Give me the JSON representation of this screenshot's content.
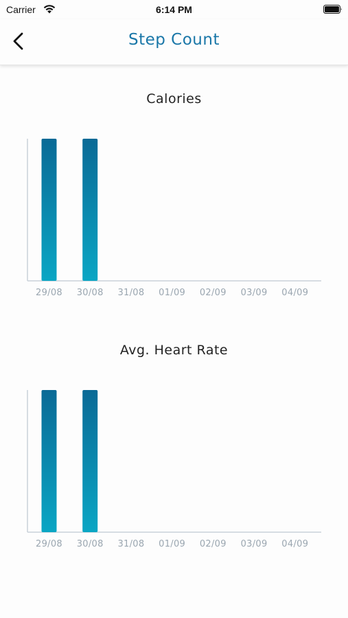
{
  "status_bar": {
    "carrier": "Carrier",
    "time": "6:14 PM"
  },
  "nav": {
    "title": "Step Count",
    "title_color": "#1a77a8"
  },
  "icons": {
    "back": "chevron-left-icon",
    "wifi": "wifi-icon",
    "battery": "battery-icon"
  },
  "colors": {
    "bar_top": "#0a6a96",
    "bar_bottom": "#0aa6c4",
    "axis": "#c9d2d9",
    "tick_label": "#9aa6b0"
  },
  "chart_data": [
    {
      "type": "bar",
      "title": "Calories",
      "categories": [
        "29/08",
        "30/08",
        "31/08",
        "01/09",
        "02/09",
        "03/09",
        "04/09"
      ],
      "values": [
        1,
        1,
        0,
        0,
        0,
        0,
        0
      ],
      "ylim": [
        0,
        1
      ],
      "grid": false,
      "xlabel": "",
      "ylabel": ""
    },
    {
      "type": "bar",
      "title": "Avg. Heart Rate",
      "categories": [
        "29/08",
        "30/08",
        "31/08",
        "01/09",
        "02/09",
        "03/09",
        "04/09"
      ],
      "values": [
        1,
        1,
        0,
        0,
        0,
        0,
        0
      ],
      "ylim": [
        0,
        1
      ],
      "grid": false,
      "xlabel": "",
      "ylabel": ""
    }
  ]
}
